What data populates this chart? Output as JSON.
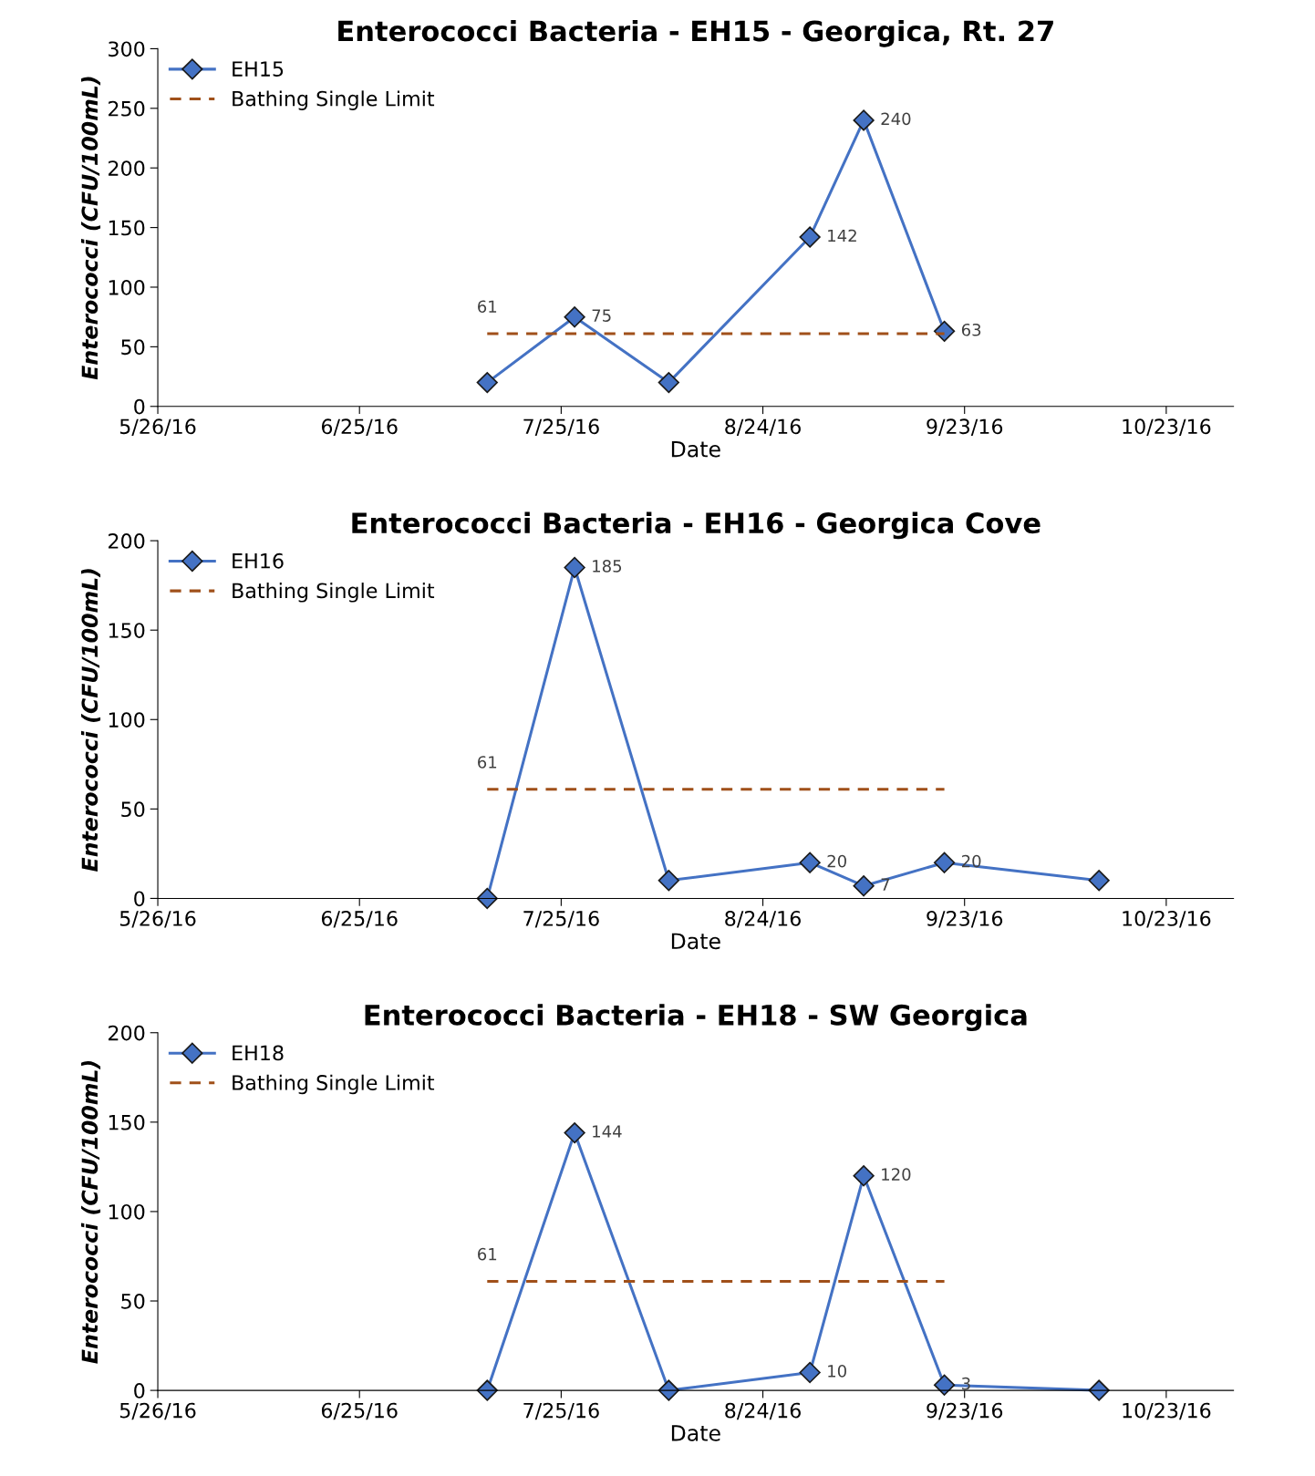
{
  "chart_data": [
    {
      "type": "line",
      "title": "Enterococci Bacteria - EH15 - Georgica, Rt. 27",
      "xlabel": "Date",
      "ylabel": "Enterococci (CFU/100mL)",
      "xlim": [
        "2016-05-26",
        "2016-11-02"
      ],
      "xticks": [
        {
          "value": "2016-05-26",
          "label": "5/26/16"
        },
        {
          "value": "2016-06-25",
          "label": "6/25/16"
        },
        {
          "value": "2016-07-25",
          "label": "7/25/16"
        },
        {
          "value": "2016-08-24",
          "label": "8/24/16"
        },
        {
          "value": "2016-09-23",
          "label": "9/23/16"
        },
        {
          "value": "2016-10-23",
          "label": "10/23/16"
        }
      ],
      "ylim": [
        0,
        300
      ],
      "yticks": [
        0,
        50,
        100,
        150,
        200,
        250,
        300
      ],
      "grid": false,
      "legend": "top left",
      "series": [
        {
          "name": "EH15",
          "color": "#4472c4",
          "marker": "diamond",
          "line_style": "solid",
          "x": [
            "2016-07-14",
            "2016-07-27",
            "2016-08-10",
            "2016-08-31",
            "2016-09-08",
            "2016-09-20"
          ],
          "values": [
            20,
            75,
            20,
            142,
            240,
            63
          ],
          "value_labels": [
            null,
            "75",
            null,
            "142",
            "240",
            "63"
          ]
        },
        {
          "name": "Bathing Single Limit",
          "color": "#a0501a",
          "marker": "none",
          "line_style": "dashed",
          "x": [
            "2016-07-14",
            "2016-09-20"
          ],
          "values": [
            61,
            61
          ],
          "value_labels": [
            "61",
            null
          ]
        }
      ]
    },
    {
      "type": "line",
      "title": "Enterococci Bacteria - EH16 - Georgica Cove",
      "xlabel": "Date",
      "ylabel": "Enterococci (CFU/100mL)",
      "xlim": [
        "2016-05-26",
        "2016-11-02"
      ],
      "xticks": [
        {
          "value": "2016-05-26",
          "label": "5/26/16"
        },
        {
          "value": "2016-06-25",
          "label": "6/25/16"
        },
        {
          "value": "2016-07-25",
          "label": "7/25/16"
        },
        {
          "value": "2016-08-24",
          "label": "8/24/16"
        },
        {
          "value": "2016-09-23",
          "label": "9/23/16"
        },
        {
          "value": "2016-10-23",
          "label": "10/23/16"
        }
      ],
      "ylim": [
        0,
        200
      ],
      "yticks": [
        0,
        50,
        100,
        150,
        200
      ],
      "grid": false,
      "legend": "top left",
      "series": [
        {
          "name": "EH16",
          "color": "#4472c4",
          "marker": "diamond",
          "line_style": "solid",
          "x": [
            "2016-07-14",
            "2016-07-27",
            "2016-08-10",
            "2016-08-31",
            "2016-09-08",
            "2016-09-20",
            "2016-10-13"
          ],
          "values": [
            0,
            185,
            10,
            20,
            7,
            20,
            10
          ],
          "value_labels": [
            null,
            "185",
            null,
            "20",
            "7",
            "20",
            null
          ]
        },
        {
          "name": "Bathing Single Limit",
          "color": "#a0501a",
          "marker": "none",
          "line_style": "dashed",
          "x": [
            "2016-07-14",
            "2016-09-20"
          ],
          "values": [
            61,
            61
          ],
          "value_labels": [
            "61",
            null
          ]
        }
      ]
    },
    {
      "type": "line",
      "title": "Enterococci Bacteria - EH18 - SW Georgica",
      "xlabel": "Date",
      "ylabel": "Enterococci (CFU/100mL)",
      "xlim": [
        "2016-05-26",
        "2016-11-02"
      ],
      "xticks": [
        {
          "value": "2016-05-26",
          "label": "5/26/16"
        },
        {
          "value": "2016-06-25",
          "label": "6/25/16"
        },
        {
          "value": "2016-07-25",
          "label": "7/25/16"
        },
        {
          "value": "2016-08-24",
          "label": "8/24/16"
        },
        {
          "value": "2016-09-23",
          "label": "9/23/16"
        },
        {
          "value": "2016-10-23",
          "label": "10/23/16"
        }
      ],
      "ylim": [
        0,
        200
      ],
      "yticks": [
        0,
        50,
        100,
        150,
        200
      ],
      "grid": false,
      "legend": "top left",
      "series": [
        {
          "name": "EH18",
          "color": "#4472c4",
          "marker": "diamond",
          "line_style": "solid",
          "x": [
            "2016-07-14",
            "2016-07-27",
            "2016-08-10",
            "2016-08-31",
            "2016-09-08",
            "2016-09-20",
            "2016-10-13"
          ],
          "values": [
            0,
            144,
            0,
            10,
            120,
            3,
            0
          ],
          "value_labels": [
            null,
            "144",
            null,
            "10",
            "120",
            "3",
            null
          ]
        },
        {
          "name": "Bathing Single Limit",
          "color": "#a0501a",
          "marker": "none",
          "line_style": "dashed",
          "x": [
            "2016-07-14",
            "2016-09-20"
          ],
          "values": [
            61,
            61
          ],
          "value_labels": [
            "61",
            null
          ]
        }
      ]
    }
  ]
}
